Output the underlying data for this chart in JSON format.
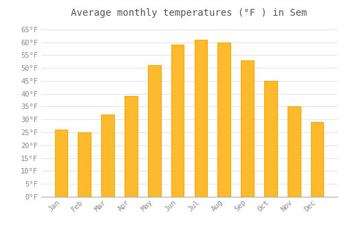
{
  "title": "Average monthly temperatures (°F ) in Sem",
  "months": [
    "Jan",
    "Feb",
    "Mar",
    "Apr",
    "May",
    "Jun",
    "Jul",
    "Aug",
    "Sep",
    "Oct",
    "Nov",
    "Dec"
  ],
  "values": [
    26,
    25,
    32,
    39,
    51,
    59,
    61,
    60,
    53,
    45,
    35,
    29
  ],
  "bar_color": "#FDBA2E",
  "bar_edge_color": "#F5A800",
  "background_color": "#FFFFFF",
  "grid_color": "#DDDDDD",
  "text_color": "#888888",
  "title_color": "#555555",
  "ylim": [
    0,
    68
  ],
  "yticks": [
    0,
    5,
    10,
    15,
    20,
    25,
    30,
    35,
    40,
    45,
    50,
    55,
    60,
    65
  ],
  "title_fontsize": 10,
  "tick_fontsize": 7.5,
  "bar_width": 0.55
}
